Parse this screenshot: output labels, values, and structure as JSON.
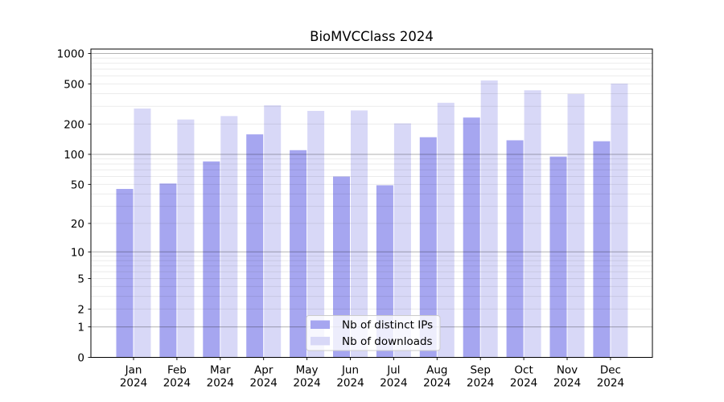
{
  "title": "BioMVCClass 2024",
  "chart_data": {
    "type": "bar",
    "title": "BioMVCClass 2024",
    "categories": [
      "Jan",
      "Feb",
      "Mar",
      "Apr",
      "May",
      "Jun",
      "Jul",
      "Aug",
      "Sep",
      "Oct",
      "Nov",
      "Dec"
    ],
    "x_tick_year": "2024",
    "series": [
      {
        "name": "Nb of distinct IPs",
        "color": "#a6a6f0",
        "values": [
          45,
          51,
          85,
          158,
          110,
          60,
          49,
          148,
          232,
          138,
          95,
          135
        ]
      },
      {
        "name": "Nb of downloads",
        "color": "#d8d8f7",
        "values": [
          285,
          222,
          240,
          307,
          270,
          273,
          203,
          325,
          540,
          432,
          398,
          503
        ]
      }
    ],
    "y_axis": {
      "scale": "log1p",
      "ticks": [
        0,
        1,
        2,
        5,
        10,
        20,
        50,
        100,
        200,
        500,
        1000
      ],
      "major_gridlines": [
        1,
        10,
        100,
        1000
      ],
      "minor_gridlines_per_decade": [
        2,
        3,
        4,
        5,
        6,
        7,
        8,
        9
      ],
      "ylim": [
        0,
        1100
      ]
    },
    "xlabel": "",
    "ylabel": "",
    "legend": {
      "position": "lower-center",
      "background": "rgba(255,255,255,0.8)",
      "border_color": "#cccccc"
    },
    "colors": {
      "axis": "#000000",
      "text": "#000000",
      "grid_major": "rgba(0,0,0,0.30)",
      "grid_minor": "rgba(0,0,0,0.08)",
      "background": "#ffffff"
    }
  }
}
